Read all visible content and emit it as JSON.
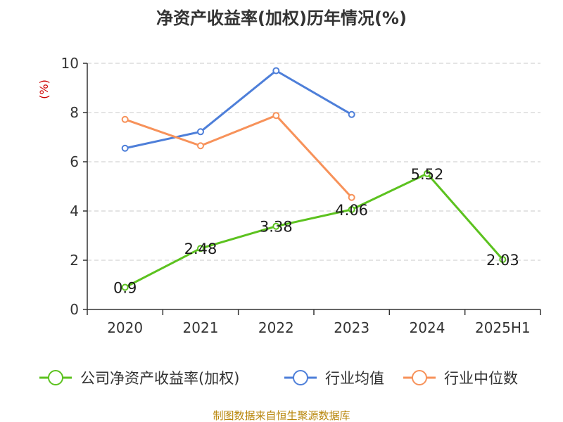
{
  "chart_data": {
    "type": "line",
    "title": "净资产收益率(加权)历年情况(%)",
    "ylabel": "(%)",
    "categories": [
      "2020",
      "2021",
      "2022",
      "2023",
      "2024",
      "2025H1"
    ],
    "ylim": [
      0,
      10
    ],
    "yticks": [
      0,
      2,
      4,
      6,
      8,
      10
    ],
    "grid": true,
    "legend_position": "bottom",
    "series": [
      {
        "name": "公司净资产收益率(加权)",
        "color": "#5cc21f",
        "values": [
          0.9,
          2.48,
          3.38,
          4.06,
          5.52,
          2.03
        ],
        "show_labels": true
      },
      {
        "name": "行业均值",
        "color": "#4e7fd9",
        "values": [
          6.55,
          7.22,
          9.7,
          7.92,
          null,
          null
        ],
        "show_labels": false
      },
      {
        "name": "行业中位数",
        "color": "#f7925a",
        "values": [
          7.72,
          6.65,
          7.88,
          4.55,
          null,
          null
        ],
        "show_labels": false
      }
    ]
  },
  "footer": {
    "source": "制图数据来自恒生聚源数据库"
  }
}
